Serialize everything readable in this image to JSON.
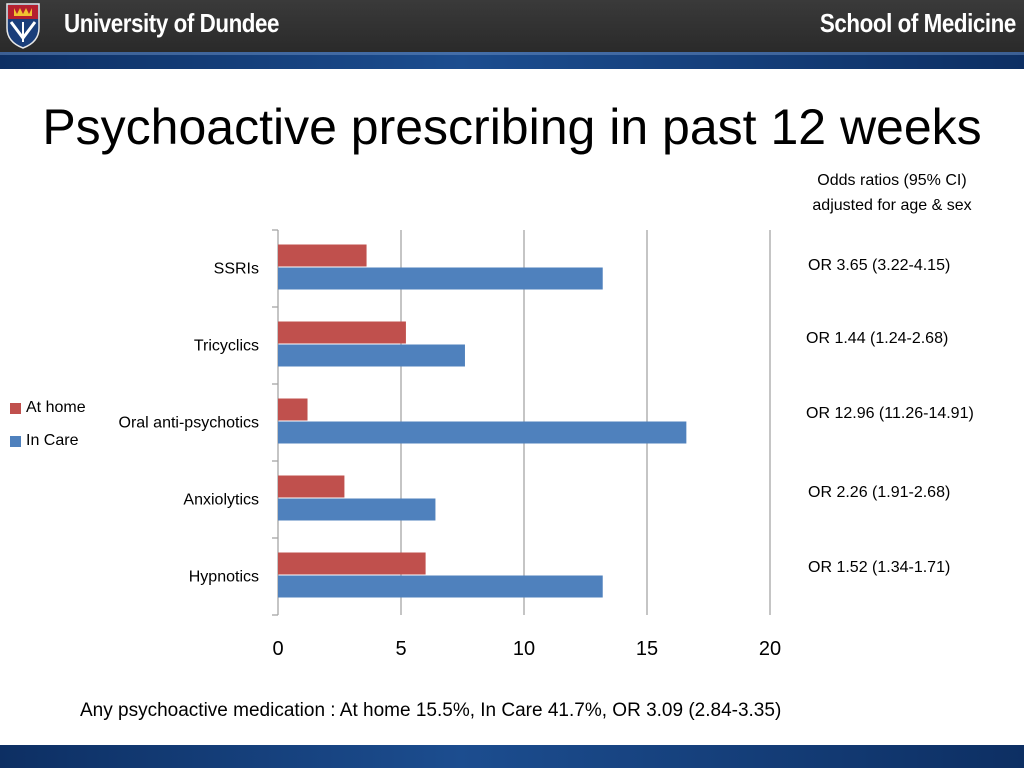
{
  "header": {
    "university": "University of Dundee",
    "school": "School of Medicine"
  },
  "title": "Psychoactive prescribing in past 12 weeks",
  "or_heading": {
    "line1": "Odds ratios (95% CI)",
    "line2": "adjusted for age & sex"
  },
  "odds_ratios": [
    "OR  3.65 (3.22-4.15)",
    "OR  1.44 (1.24-2.68)",
    "OR  12.96 (11.26-14.91)",
    "OR  2.26 (1.91-2.68)",
    "OR  1.52 (1.34-1.71)"
  ],
  "footnote": "Any psychoactive medication : At home 15.5%, In Care 41.7%, OR 3.09 (2.84-3.35)",
  "colors": {
    "at_home": "#c0504d",
    "in_care": "#4f81bd",
    "header_dark": "#333333",
    "header_blue": "#1a4585"
  },
  "chart_data": {
    "type": "bar",
    "orientation": "horizontal",
    "categories": [
      "SSRIs",
      "Tricyclics",
      "Oral anti-psychotics",
      "Anxiolytics",
      "Hypnotics"
    ],
    "series": [
      {
        "name": "At home",
        "values": [
          3.6,
          5.2,
          1.2,
          2.7,
          6.0
        ]
      },
      {
        "name": "In Care",
        "values": [
          13.2,
          7.6,
          16.6,
          6.4,
          13.2
        ]
      }
    ],
    "xlim": [
      0,
      20
    ],
    "xticks": [
      "0",
      "5",
      "10",
      "15",
      "20"
    ],
    "grid": true,
    "legend": "left"
  }
}
